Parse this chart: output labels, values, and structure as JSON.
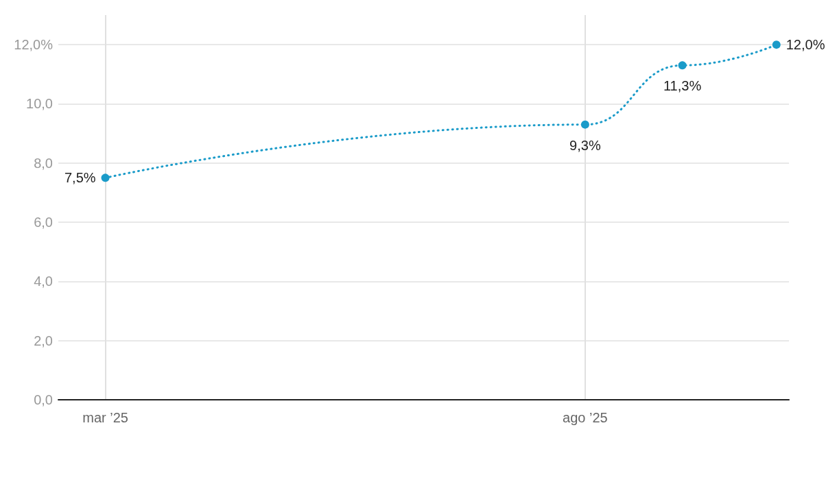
{
  "chart_data": {
    "type": "line",
    "x": [
      "2025-03",
      "2025-08",
      "2025-09",
      "2025-10"
    ],
    "series": [
      {
        "color": "#1a9bc9",
        "values": [
          7.5,
          9.3,
          11.3,
          12.0
        ],
        "value_labels": [
          "7,5%",
          "9,3%",
          "11,3%",
          "12,0%"
        ]
      }
    ],
    "xlim": [
      "2025-02-14",
      "2025-10-05"
    ],
    "xticks": [
      {
        "value": "2025-03",
        "label": "mar ’25"
      },
      {
        "value": "2025-08",
        "label": "ago ’25"
      }
    ],
    "ylim": [
      0,
      13
    ],
    "yticks": [
      {
        "value": 0,
        "label": "0,0"
      },
      {
        "value": 2,
        "label": "2,0"
      },
      {
        "value": 4,
        "label": "4,0"
      },
      {
        "value": 6,
        "label": "6,0"
      },
      {
        "value": 8,
        "label": "8,0"
      },
      {
        "value": 10,
        "label": "10,0"
      },
      {
        "value": 12,
        "label": "12,0%"
      }
    ],
    "grid": true,
    "marker": "circle",
    "line_style": "dotted"
  }
}
